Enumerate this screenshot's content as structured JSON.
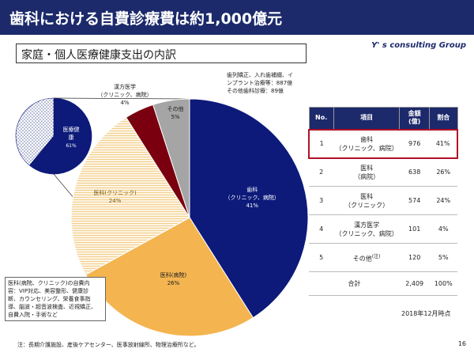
{
  "header": {
    "title": "歯科における自費診療費は約1,000億元"
  },
  "subtitle": "家庭・個人医療健康支出の内訳",
  "brand": "Y' s consulting Group",
  "chart_data": [
    {
      "type": "pie",
      "slices": [
        {
          "label": "医療健康",
          "percent": "61%",
          "value": 61,
          "color": "#0d1a7a"
        },
        {
          "label": "",
          "percent": "",
          "value": 39,
          "color": "#8f9ac9"
        }
      ]
    },
    {
      "type": "pie",
      "slices": [
        {
          "name": "歯科",
          "name2": "（クリニック、病院）",
          "percent": "41%",
          "value": 41,
          "color": "#0d1a7a",
          "text_color": "#ffffff"
        },
        {
          "name": "医科(病院)",
          "name2": "",
          "percent": "26%",
          "value": 26,
          "color": "#f4b450",
          "text_color": "#222222"
        },
        {
          "name": "医科(クリニック)",
          "name2": "",
          "percent": "24%",
          "value": 24,
          "color": "#fbeed7",
          "text_color": "#7a5a10"
        },
        {
          "name": "漢方医学",
          "name2": "（クリニック、病院）",
          "percent": "4%",
          "value": 4,
          "color": "#7a0010",
          "text_color": "#222222"
        },
        {
          "name": "その他",
          "name2": "",
          "percent": "5%",
          "value": 5,
          "color": "#a5a5a5",
          "text_color": "#222222"
        }
      ]
    }
  ],
  "callouts": {
    "ortho": [
      "歯列矯正、入れ歯補綴、イ",
      "ンプラント治療等：887億",
      "その他歯科診療：89億"
    ],
    "misc": [
      "医科(病院、クリニック)の自費内",
      "容：VIP対応、美容整形、健康診",
      "断、カウンセリング、栄養食事指",
      "導、脳波・超音波検査、近視矯正、",
      "自費入院・手術など"
    ]
  },
  "table": {
    "headers": [
      "No.",
      "項目",
      "金額\n(億)",
      "割合"
    ],
    "rows": [
      {
        "no": "1",
        "item1": "歯科",
        "item2": "（クリニック、病院）",
        "note": "",
        "amount": "976",
        "share": "41%"
      },
      {
        "no": "2",
        "item1": "医科",
        "item2": "（病院）",
        "note": "",
        "amount": "638",
        "share": "26%"
      },
      {
        "no": "3",
        "item1": "医科",
        "item2": "（クリニック）",
        "note": "",
        "amount": "574",
        "share": "24%"
      },
      {
        "no": "4",
        "item1": "漢方医学",
        "item2": "（クリニック、病院）",
        "note": "",
        "amount": "101",
        "share": "4%"
      },
      {
        "no": "5",
        "item1": "その他",
        "item2": "",
        "note": "(注)",
        "amount": "120",
        "share": "5%"
      }
    ],
    "total": {
      "label": "合計",
      "amount": "2,409",
      "share": "100%"
    }
  },
  "as_of": "2018年12月時点",
  "footnote": "注：長期介護施設、産後ケアセンター、医事放射線所、物理治療所など。",
  "page_number": "16"
}
